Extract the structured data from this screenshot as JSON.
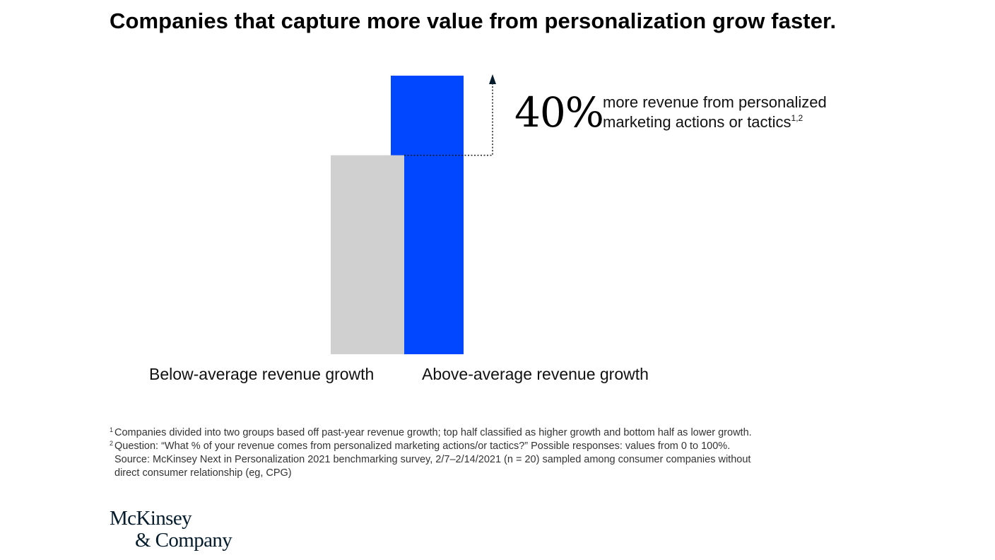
{
  "title": "Companies that capture more value from personalization grow faster.",
  "chart_data": {
    "type": "bar",
    "categories": [
      "Below-average revenue growth",
      "Above-average revenue growth"
    ],
    "values": [
      1.0,
      1.4
    ],
    "colors": [
      "#d0d0d0",
      "#0047ff"
    ],
    "ylim": [
      0,
      1.4
    ],
    "grid": false,
    "annotation": {
      "value": "40%",
      "text_line1": "more revenue from personalized",
      "text_line2": "marketing actions or tactics",
      "superscript": "1,2"
    }
  },
  "footnotes": [
    {
      "marker": "1",
      "text": "Companies divided into two groups based off past-year revenue growth; top half classified as higher growth and bottom half as lower growth."
    },
    {
      "marker": "2",
      "text": "Question: “What % of your revenue comes from personalized marketing actions/or tactics?” Possible responses: values from 0 to 100%."
    }
  ],
  "source_lines": [
    "Source: McKinsey Next in Personalization 2021 benchmarking survey, 2/7–2/14/2021 (n = 20) sampled among consumer companies without",
    "direct consumer relationship (eg, CPG)"
  ],
  "logo": {
    "line1": "McKinsey",
    "line2": "& Company"
  }
}
